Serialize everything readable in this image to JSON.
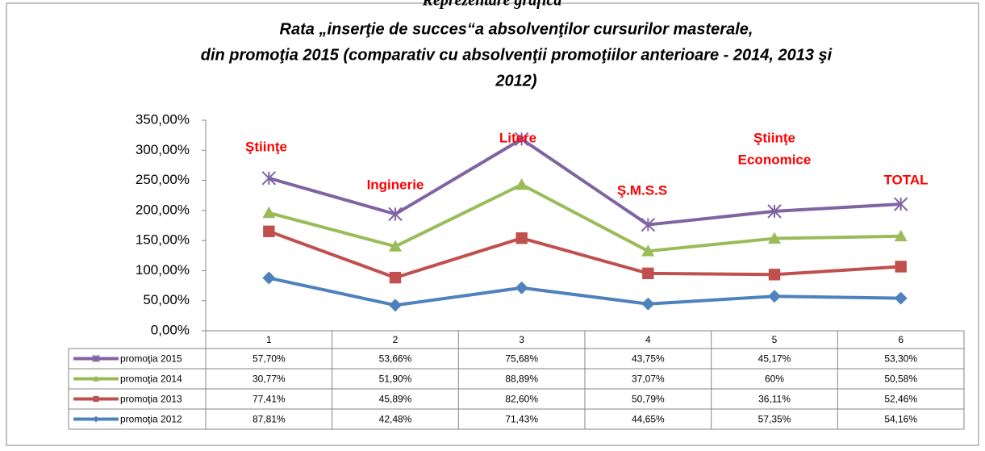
{
  "chart_data": {
    "type": "line",
    "stacked": true,
    "heading": "Reprezentare grafică",
    "title": [
      "Rata „inserţie de succes“a absolvenţilor cursurilor masterale,",
      "din promoţia 2015 (comparativ cu absolvenţii promoţiilor anterioare -  2014, 2013 şi",
      "2012)"
    ],
    "annotations": [
      [
        "Ştiinţe"
      ],
      [
        "Inginerie"
      ],
      [
        "Litere"
      ],
      [
        "Ş.M.S.S"
      ],
      [
        "Ştiinţe",
        "Economice"
      ],
      [
        "TOTAL"
      ]
    ],
    "categories": [
      "1",
      "2",
      "3",
      "4",
      "5",
      "6"
    ],
    "ylim": [
      0,
      350
    ],
    "yticks": [
      {
        "value": 0,
        "label": "0,00%"
      },
      {
        "value": 50,
        "label": "50,00%"
      },
      {
        "value": 100,
        "label": "100,00%"
      },
      {
        "value": 150,
        "label": "150,00%"
      },
      {
        "value": 200,
        "label": "200,00%"
      },
      {
        "value": 250,
        "label": "250,00%"
      },
      {
        "value": 300,
        "label": "300,00%"
      },
      {
        "value": 350,
        "label": "350,00%"
      }
    ],
    "data_table": true,
    "series": [
      {
        "name": "promoţia 2015",
        "color": "#8064a2",
        "marker": "star",
        "values": [
          57.7,
          53.66,
          75.68,
          43.75,
          45.17,
          53.3
        ],
        "value_labels": [
          "57,70%",
          "53,66%",
          "75,68%",
          "43,75%",
          "45,17%",
          "53,30%"
        ]
      },
      {
        "name": "promoţia 2014",
        "color": "#9bbb59",
        "marker": "triangle",
        "values": [
          30.77,
          51.9,
          88.89,
          37.07,
          60,
          50.58
        ],
        "value_labels": [
          "30,77%",
          "51,90%",
          "88,89%",
          "37,07%",
          "60%",
          "50,58%"
        ]
      },
      {
        "name": "promoţia 2013",
        "color": "#c0504d",
        "marker": "square",
        "values": [
          77.41,
          45.89,
          82.6,
          50.79,
          36.11,
          52.46
        ],
        "value_labels": [
          "77,41%",
          "45,89%",
          "82,60%",
          "50,79%",
          "36,11%",
          "52,46%"
        ]
      },
      {
        "name": "promoţia 2012",
        "color": "#4f81bd",
        "marker": "diamond",
        "values": [
          87.81,
          42.48,
          71.43,
          44.65,
          57.35,
          54.16
        ],
        "value_labels": [
          "87,81%",
          "42,48%",
          "71,43%",
          "44,65%",
          "57,35%",
          "54,16%"
        ]
      }
    ]
  }
}
